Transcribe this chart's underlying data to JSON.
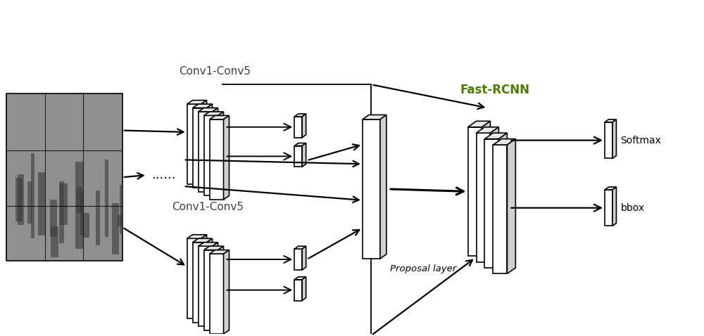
{
  "background_color": "#ffffff",
  "fig_width": 10.0,
  "fig_height": 4.78,
  "conv1conv5_top_label": "Conv1-Conv5",
  "conv1conv5_bot_label": "Conv1-Conv5",
  "fastrcnn_label": "Fast-RCNN",
  "proposal_label": "Proposal layer",
  "softmax_label": "Softmax",
  "bbox_label": "bbox",
  "dots_label": "......",
  "label_color_fastrcnn": "#4a7c00",
  "label_color_conv": "#404040",
  "label_color_black": "#000000",
  "face_color": "#ffffff",
  "top_face_color": "#e8e8e8",
  "right_face_color": "#d0d0d0",
  "edge_color": "#000000"
}
